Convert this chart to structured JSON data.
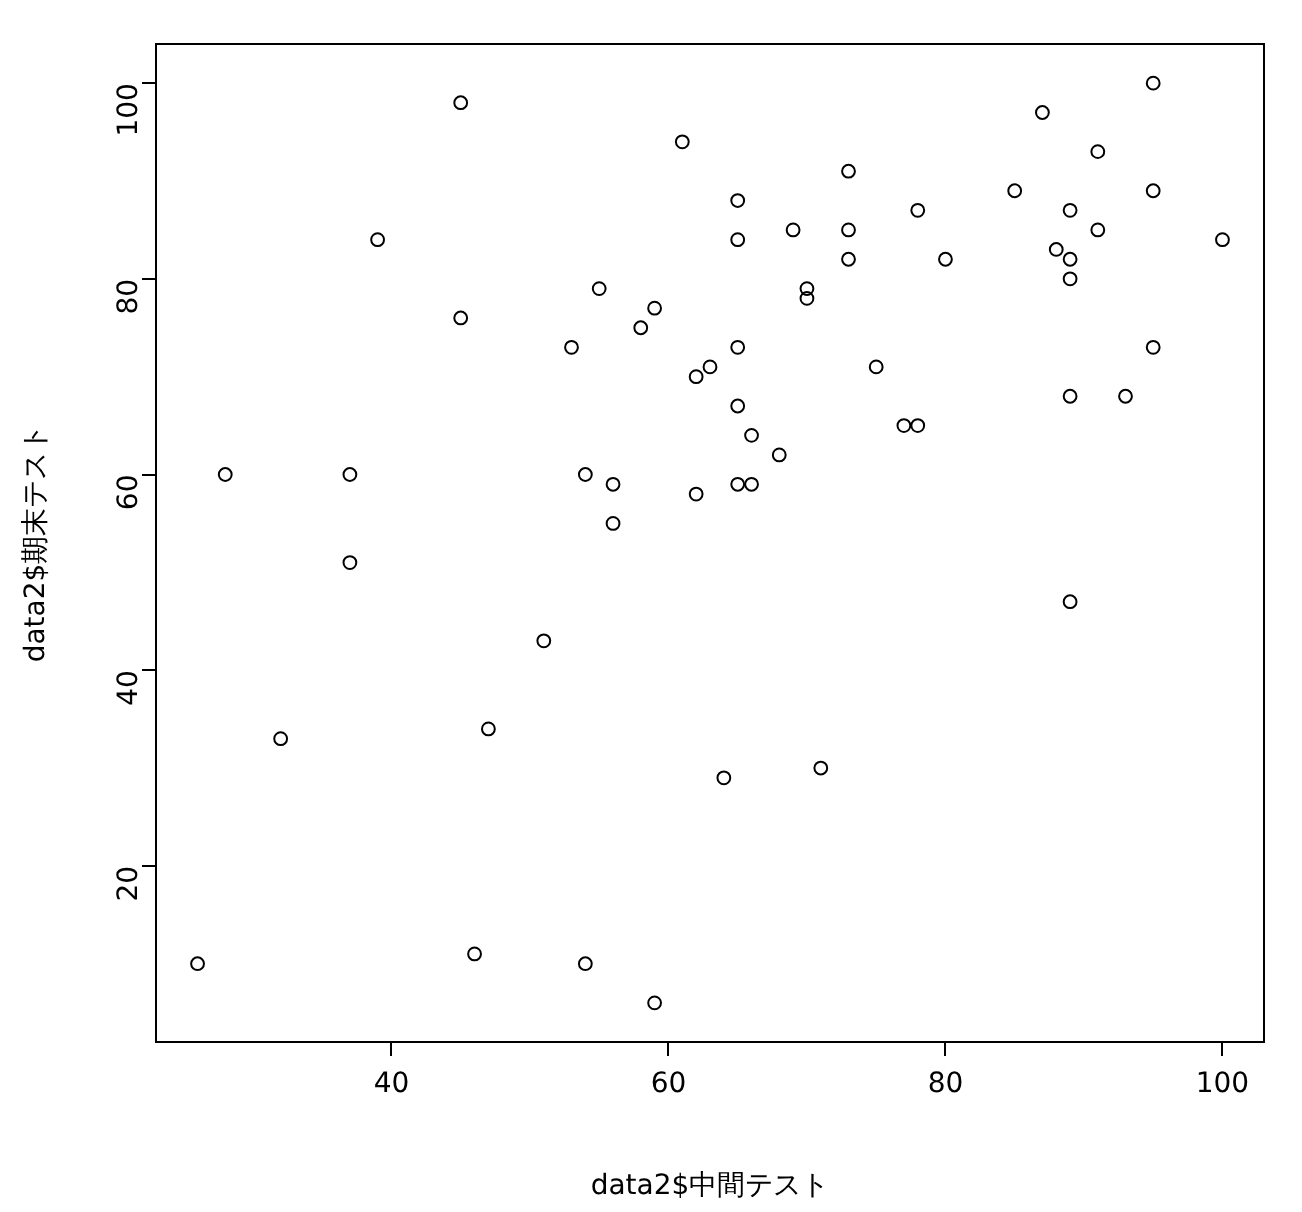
{
  "chart_data": {
    "type": "scatter",
    "xlabel": "data2$中間テスト",
    "ylabel": "data2$期末テスト",
    "marker": "circle",
    "series": [
      {
        "color": "#000000",
        "x": [
          45,
          61,
          39,
          55,
          45,
          59,
          58,
          53,
          62,
          63,
          28,
          37,
          54,
          56,
          56,
          62,
          95,
          87,
          91,
          73,
          65,
          85,
          95,
          78,
          89,
          69,
          73,
          91,
          65,
          100,
          88,
          89,
          73,
          80,
          89,
          70,
          70,
          65,
          95,
          75,
          65,
          89,
          93,
          77,
          78,
          66,
          68,
          65,
          66,
          37,
          51,
          32,
          47,
          26,
          46,
          54,
          59,
          64,
          71,
          89
        ],
        "values": [
          98,
          94,
          84,
          79,
          76,
          77,
          75,
          73,
          70,
          71,
          60,
          60,
          60,
          59,
          55,
          58,
          100,
          97,
          93,
          91,
          88,
          89,
          89,
          87,
          87,
          85,
          85,
          85,
          84,
          84,
          83,
          82,
          82,
          82,
          80,
          79,
          78,
          73,
          73,
          71,
          67,
          68,
          68,
          65,
          65,
          64,
          62,
          59,
          59,
          51,
          43,
          33,
          34,
          10,
          11,
          10,
          6,
          29,
          30,
          47
        ]
      }
    ],
    "xlim": [
      23,
      103
    ],
    "ylim": [
      2,
      104
    ],
    "xticks": [
      40,
      60,
      80,
      100
    ],
    "yticks": [
      20,
      40,
      60,
      80,
      100
    ]
  }
}
